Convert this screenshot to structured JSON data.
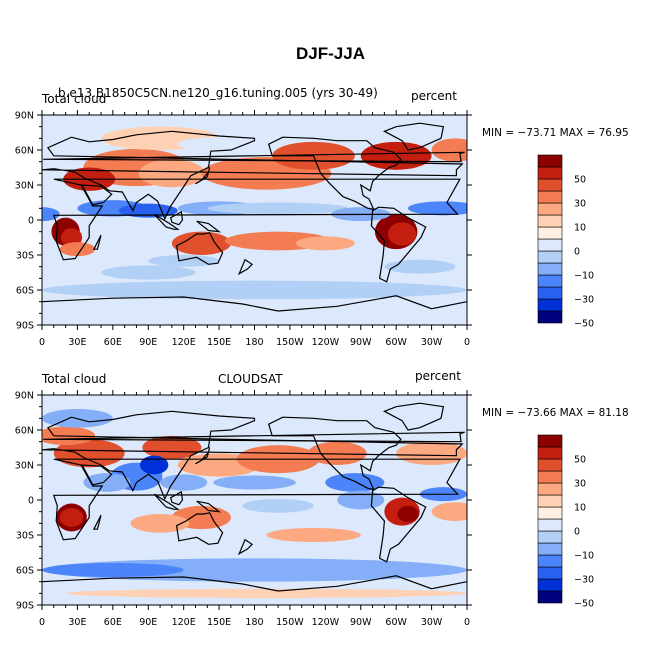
{
  "figure": {
    "title": "DJF-JJA"
  },
  "colors": {
    "scale": [
      "#00007f",
      "#0030d8",
      "#2860f0",
      "#4c84fa",
      "#84aef8",
      "#b2cff6",
      "#dce8fb",
      "#fff0e0",
      "#fed1b5",
      "#fca880",
      "#f47c52",
      "#e0502c",
      "#c41e10",
      "#8c0000"
    ]
  },
  "axes": {
    "lat_ticks": [
      "90N",
      "60N",
      "30N",
      "0",
      "30S",
      "60S",
      "90S"
    ],
    "lon_ticks": [
      "0",
      "30E",
      "60E",
      "90E",
      "120E",
      "150E",
      "180",
      "150W",
      "120W",
      "90W",
      "60W",
      "30W",
      "0"
    ]
  },
  "panels": [
    {
      "left_label": "Total cloud",
      "center_label": "b.e13.B1850C5CN.ne120_g16.tuning.005 (yrs 30-49)",
      "right_label": "percent",
      "minmax": "MIN = −73.71  MAX =   76.95",
      "colorbar_labels": [
        "50",
        "30",
        "10",
        "0",
        "−10",
        "−30",
        "−50"
      ]
    },
    {
      "left_label": "Total cloud",
      "center_label": "CLOUDSAT",
      "right_label": "percent",
      "minmax": "MIN = −73.66  MAX =   81.18",
      "colorbar_labels": [
        "50",
        "30",
        "10",
        "0",
        "−10",
        "−30",
        "−50"
      ]
    }
  ]
}
